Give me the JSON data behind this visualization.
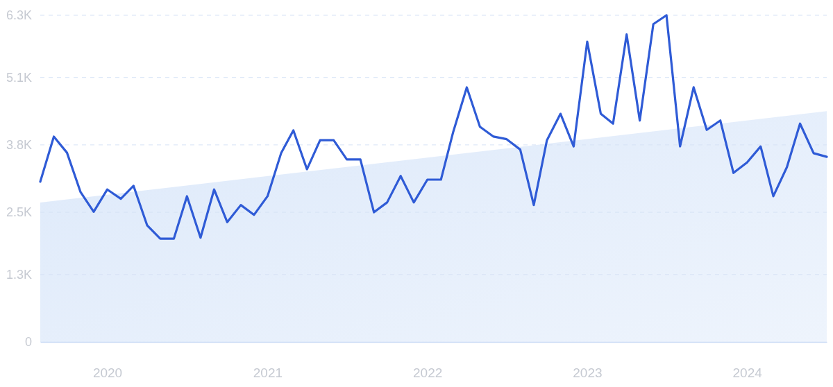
{
  "chart_data": {
    "type": "line",
    "x": [
      "2019-08",
      "2019-09",
      "2019-10",
      "2019-11",
      "2019-12",
      "2020-01",
      "2020-02",
      "2020-03",
      "2020-04",
      "2020-05",
      "2020-06",
      "2020-07",
      "2020-08",
      "2020-09",
      "2020-10",
      "2020-11",
      "2020-12",
      "2021-01",
      "2021-02",
      "2021-03",
      "2021-04",
      "2021-05",
      "2021-06",
      "2021-07",
      "2021-08",
      "2021-09",
      "2021-10",
      "2021-11",
      "2021-12",
      "2022-01",
      "2022-02",
      "2022-03",
      "2022-04",
      "2022-05",
      "2022-06",
      "2022-07",
      "2022-08",
      "2022-09",
      "2022-10",
      "2022-11",
      "2022-12",
      "2023-01",
      "2023-02",
      "2023-03",
      "2023-04",
      "2023-05",
      "2023-06",
      "2023-07",
      "2023-08",
      "2023-09",
      "2023-10",
      "2023-11",
      "2023-12",
      "2024-01",
      "2024-02",
      "2024-03",
      "2024-04",
      "2024-05",
      "2024-06",
      "2024-07"
    ],
    "series": [
      {
        "type": "area",
        "color": "#dde9fa",
        "x": [
          "2019-08",
          "2024-07"
        ],
        "values": [
          2690,
          4450
        ]
      },
      {
        "type": "line",
        "color": "#2f5bd6",
        "values": [
          3090,
          3960,
          3650,
          2890,
          2510,
          2940,
          2760,
          3010,
          2250,
          1990,
          1990,
          2810,
          2010,
          2940,
          2310,
          2640,
          2450,
          2810,
          3640,
          4080,
          3330,
          3890,
          3890,
          3520,
          3520,
          2500,
          2690,
          3200,
          2690,
          3130,
          3130,
          4050,
          4910,
          4150,
          3960,
          3910,
          3710,
          2640,
          3890,
          4400,
          3770,
          5790,
          4400,
          4210,
          5930,
          4270,
          6130,
          6300,
          3770,
          4910,
          4090,
          4270,
          3260,
          3460,
          3770,
          2810,
          3370,
          4210,
          3640,
          3570
        ]
      }
    ],
    "xlim": [
      "2019-08",
      "2024-07"
    ],
    "xticks": [
      "2020",
      "2021",
      "2022",
      "2023",
      "2024"
    ],
    "ylim": [
      0,
      6300
    ],
    "yticks": [
      0,
      {
        "value": 1300,
        "label": "1.3K"
      },
      {
        "value": 2500,
        "label": "2.5K"
      },
      {
        "value": 3800,
        "label": "3.8K"
      },
      {
        "value": 5100,
        "label": "5.1K"
      },
      {
        "value": 6300,
        "label": "6.3K"
      }
    ],
    "grid": "y",
    "line_style": "solid",
    "marker": "none"
  }
}
